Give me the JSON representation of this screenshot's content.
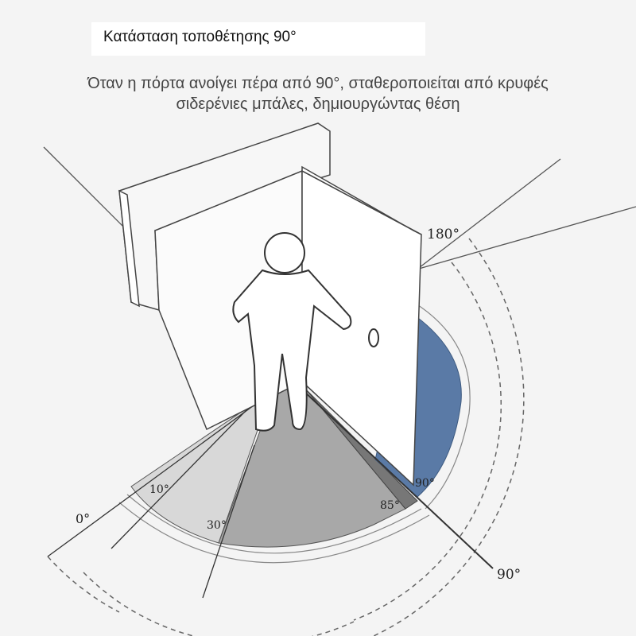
{
  "title": "Κατάσταση τοποθέτησης 90°",
  "subtitle_line1": "Όταν η πόρτα ανοίγει πέρα από 90°, σταθεροποιείται από κρυφές",
  "subtitle_line2": "σιδερένιες μπάλες, δημιουργώντας θέση",
  "angles": {
    "a0": "0°",
    "a10": "10°",
    "a30": "30°",
    "a85": "85°",
    "a90_inner": "90°",
    "a90_outer": "90°",
    "a180": "180°"
  },
  "colors": {
    "blue": "#5a7aa6",
    "light_gray": "#d6d6d6",
    "mid_gray": "#a9a9a9",
    "dark_gray": "#777777"
  }
}
